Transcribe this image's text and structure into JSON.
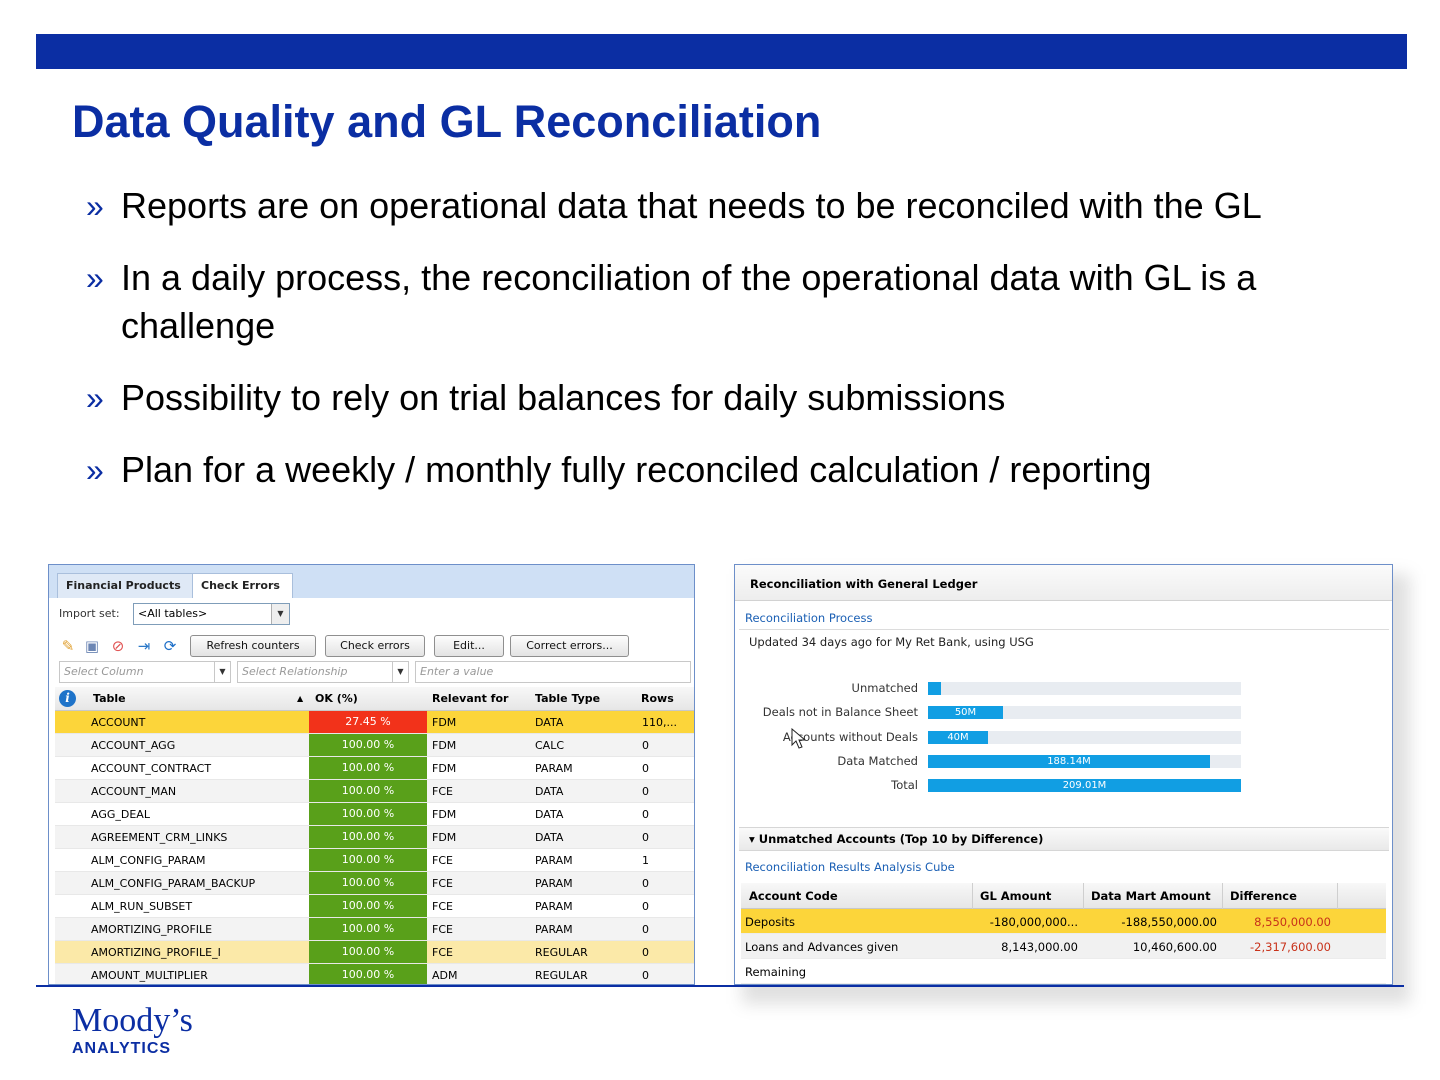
{
  "slide": {
    "title": "Data Quality and GL Reconciliation",
    "bullet_mark": "»",
    "bullets": [
      "Reports are on operational data that needs to be reconciled with the GL",
      "In a daily process, the reconciliation of the operational data with GL is a challenge",
      "Possibility to rely on trial balances for daily submissions",
      "Plan for a weekly / monthly fully reconciled calculation / reporting"
    ],
    "logo_main": "Moody’s",
    "logo_sub": "ANALYTICS",
    "brand_color": "#0b2ea3"
  },
  "left_screen": {
    "tabs": [
      "Financial Products",
      "Check Errors"
    ],
    "import_set_label": "Import set:",
    "import_set_value": "<All tables>",
    "toolbar_buttons": [
      "Refresh counters",
      "Check errors",
      "Edit...",
      "Correct errors..."
    ],
    "toolbar_icons": [
      "pencil-icon",
      "save-icon",
      "cancel-icon",
      "export-icon",
      "refresh-icon"
    ],
    "filters": {
      "column_placeholder": "Select Column",
      "relationship_placeholder": "Select Relationship",
      "value_placeholder": "Enter a value"
    },
    "columns": [
      "Table",
      "OK (%)",
      "Relevant for",
      "Table Type",
      "Rows"
    ],
    "rows": [
      {
        "table": "ACCOUNT",
        "ok": "27.45 %",
        "relevant": "FDM",
        "type": "DATA",
        "rows": "110,..."
      },
      {
        "table": "ACCOUNT_AGG",
        "ok": "100.00 %",
        "relevant": "FDM",
        "type": "CALC",
        "rows": "0"
      },
      {
        "table": "ACCOUNT_CONTRACT",
        "ok": "100.00 %",
        "relevant": "FDM",
        "type": "PARAM",
        "rows": "0"
      },
      {
        "table": "ACCOUNT_MAN",
        "ok": "100.00 %",
        "relevant": "FCE",
        "type": "DATA",
        "rows": "0"
      },
      {
        "table": "AGG_DEAL",
        "ok": "100.00 %",
        "relevant": "FDM",
        "type": "DATA",
        "rows": "0"
      },
      {
        "table": "AGREEMENT_CRM_LINKS",
        "ok": "100.00 %",
        "relevant": "FDM",
        "type": "DATA",
        "rows": "0"
      },
      {
        "table": "ALM_CONFIG_PARAM",
        "ok": "100.00 %",
        "relevant": "FCE",
        "type": "PARAM",
        "rows": "1"
      },
      {
        "table": "ALM_CONFIG_PARAM_BACKUP",
        "ok": "100.00 %",
        "relevant": "FCE",
        "type": "PARAM",
        "rows": "0"
      },
      {
        "table": "ALM_RUN_SUBSET",
        "ok": "100.00 %",
        "relevant": "FCE",
        "type": "PARAM",
        "rows": "0"
      },
      {
        "table": "AMORTIZING_PROFILE",
        "ok": "100.00 %",
        "relevant": "FCE",
        "type": "PARAM",
        "rows": "0"
      },
      {
        "table": "AMORTIZING_PROFILE_I",
        "ok": "100.00 %",
        "relevant": "FCE",
        "type": "REGULAR",
        "rows": "0"
      },
      {
        "table": "AMOUNT_MULTIPLIER",
        "ok": "100.00 %",
        "relevant": "ADM",
        "type": "REGULAR",
        "rows": "0"
      }
    ]
  },
  "right_screen": {
    "header": "Reconciliation with General Ledger",
    "process_link": "Reconciliation Process",
    "updated": "Updated 34 days ago for My Ret Bank, using USG",
    "bars": [
      {
        "label": "Unmatched",
        "value_text": "",
        "value": 9
      },
      {
        "label": "Deals not in Balance Sheet",
        "value_text": "50M",
        "value": 50
      },
      {
        "label": "Accounts without Deals",
        "value_text": "40M",
        "value": 40
      },
      {
        "label": "Data Matched",
        "value_text": "188.14M",
        "value": 188.14
      },
      {
        "label": "Total",
        "value_text": "209.01M",
        "value": 209.01
      }
    ],
    "bar_max": 209.01,
    "section_title": "Unmatched Accounts (Top 10 by Difference)",
    "cube_link": "Reconciliation Results Analysis Cube",
    "columns": [
      "Account Code",
      "GL Amount",
      "Data Mart Amount",
      "Difference"
    ],
    "rows": [
      {
        "code": "Deposits",
        "gl": "-180,000,000...",
        "dm": "-188,550,000.00",
        "diff": "8,550,000.00"
      },
      {
        "code": "Loans and Advances given",
        "gl": "8,143,000.00",
        "dm": "10,460,600.00",
        "diff": "-2,317,600.00"
      },
      {
        "code": "Remaining",
        "gl": "",
        "dm": "",
        "diff": ""
      }
    ]
  }
}
